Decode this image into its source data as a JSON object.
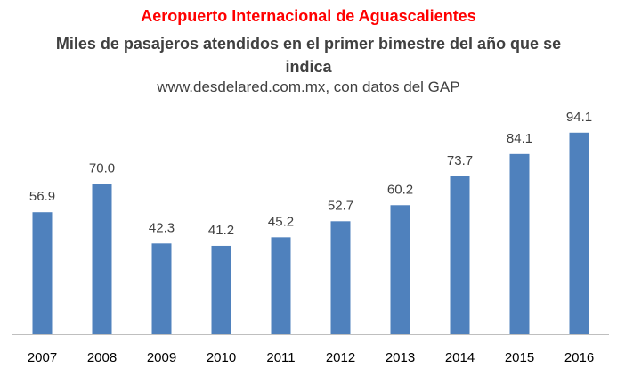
{
  "chart_data": {
    "type": "bar",
    "title": "Aeropuerto Internacional de Aguascalientes",
    "subtitle": "Miles de pasajeros atendidos en el primer bimestre del año que se indica",
    "source": "www.desdelared.com.mx, con datos del GAP",
    "categories": [
      "2007",
      "2008",
      "2009",
      "2010",
      "2011",
      "2012",
      "2013",
      "2014",
      "2015",
      "2016"
    ],
    "values": [
      56.9,
      70.0,
      42.3,
      41.2,
      45.2,
      52.7,
      60.2,
      73.7,
      84.1,
      94.1
    ],
    "data_labels": [
      "56.9",
      "70.0",
      "42.3",
      "41.2",
      "45.2",
      "52.7",
      "60.2",
      "73.7",
      "84.1",
      "94.1"
    ],
    "xlabel": "",
    "ylabel": "",
    "ylim": [
      0,
      100
    ],
    "grid": false,
    "bar_color": "#4f81bd",
    "title_color": "#ff0000"
  }
}
